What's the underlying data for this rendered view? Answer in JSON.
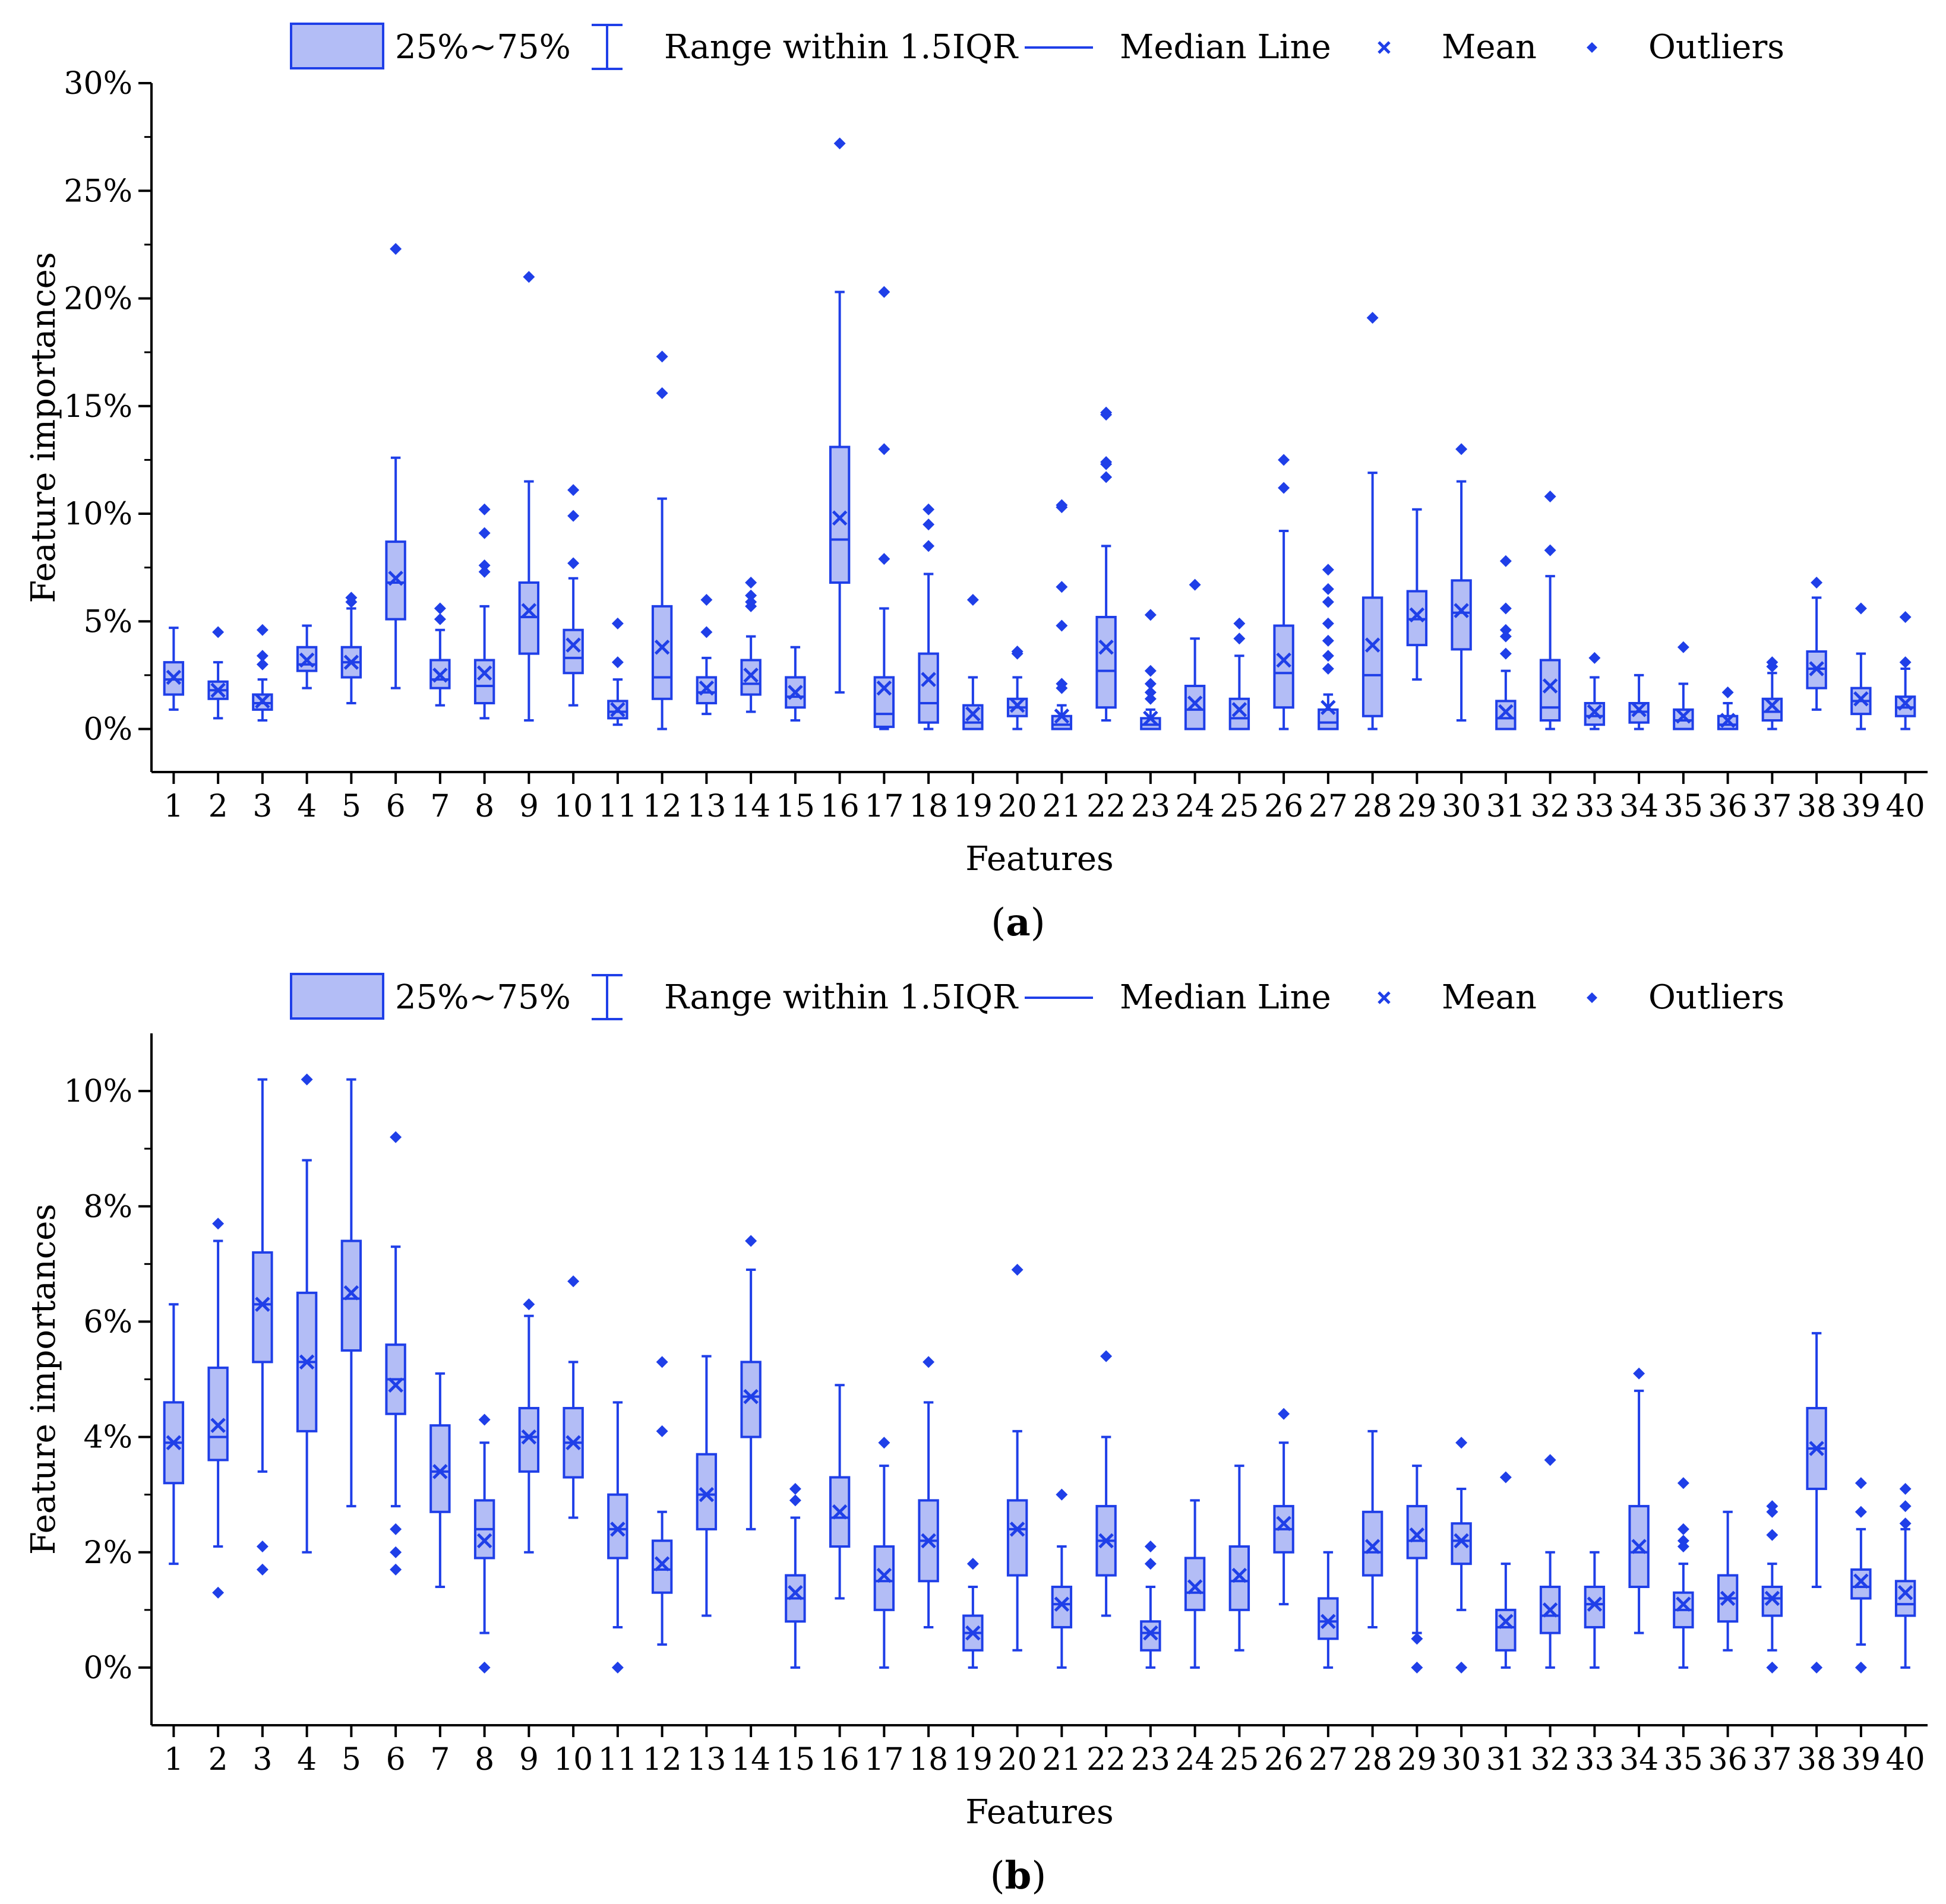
{
  "colors": {
    "accent": "#1f3fe8",
    "fill": "#b3bdf6",
    "axis": "#000000"
  },
  "legend": {
    "box": "25%~75%",
    "range": "Range within 1.5IQR",
    "median": "Median Line",
    "mean": "Mean",
    "outliers": "Outliers"
  },
  "chart_data": [
    {
      "type": "box",
      "caption_letter": "a",
      "xlabel": "Features",
      "ylabel": "Feature importances",
      "ylim": [
        -2,
        30
      ],
      "yticks": [
        0,
        5,
        10,
        15,
        20,
        25,
        30
      ],
      "ytick_labels": [
        "0%",
        "5%",
        "10%",
        "15%",
        "20%",
        "25%",
        "30%"
      ],
      "categories": [
        "1",
        "2",
        "3",
        "4",
        "5",
        "6",
        "7",
        "8",
        "9",
        "10",
        "11",
        "12",
        "13",
        "14",
        "15",
        "16",
        "17",
        "18",
        "19",
        "20",
        "21",
        "22",
        "23",
        "24",
        "25",
        "26",
        "27",
        "28",
        "29",
        "30",
        "31",
        "32",
        "33",
        "34",
        "35",
        "36",
        "37",
        "38",
        "39",
        "40"
      ],
      "boxes": [
        {
          "q1": 1.6,
          "median": 2.3,
          "q3": 3.1,
          "lo": 0.9,
          "hi": 4.7,
          "mean": 2.4,
          "outliers": []
        },
        {
          "q1": 1.4,
          "median": 1.8,
          "q3": 2.2,
          "lo": 0.5,
          "hi": 3.1,
          "mean": 1.8,
          "outliers": [
            4.5
          ]
        },
        {
          "q1": 0.9,
          "median": 1.2,
          "q3": 1.6,
          "lo": 0.4,
          "hi": 2.3,
          "mean": 1.3,
          "outliers": [
            3.0,
            3.4,
            4.6
          ]
        },
        {
          "q1": 2.7,
          "median": 3.0,
          "q3": 3.8,
          "lo": 1.9,
          "hi": 4.8,
          "mean": 3.2,
          "outliers": []
        },
        {
          "q1": 2.4,
          "median": 3.1,
          "q3": 3.8,
          "lo": 1.2,
          "hi": 5.6,
          "mean": 3.1,
          "outliers": [
            5.9,
            6.1
          ]
        },
        {
          "q1": 5.1,
          "median": 6.8,
          "q3": 8.7,
          "lo": 1.9,
          "hi": 12.6,
          "mean": 7.0,
          "outliers": [
            22.3
          ]
        },
        {
          "q1": 1.9,
          "median": 2.3,
          "q3": 3.2,
          "lo": 1.1,
          "hi": 4.6,
          "mean": 2.5,
          "outliers": [
            5.1,
            5.6
          ]
        },
        {
          "q1": 1.2,
          "median": 2.0,
          "q3": 3.2,
          "lo": 0.5,
          "hi": 5.7,
          "mean": 2.6,
          "outliers": [
            7.3,
            7.6,
            9.1,
            10.2
          ]
        },
        {
          "q1": 3.5,
          "median": 5.2,
          "q3": 6.8,
          "lo": 0.4,
          "hi": 11.5,
          "mean": 5.5,
          "outliers": [
            21.0
          ]
        },
        {
          "q1": 2.6,
          "median": 3.3,
          "q3": 4.6,
          "lo": 1.1,
          "hi": 7.0,
          "mean": 3.9,
          "outliers": [
            7.7,
            9.9,
            11.1
          ]
        },
        {
          "q1": 0.5,
          "median": 0.8,
          "q3": 1.3,
          "lo": 0.2,
          "hi": 2.3,
          "mean": 0.9,
          "outliers": [
            3.1,
            4.9
          ]
        },
        {
          "q1": 1.4,
          "median": 2.4,
          "q3": 5.7,
          "lo": 0.0,
          "hi": 10.7,
          "mean": 3.8,
          "outliers": [
            15.6,
            17.3
          ]
        },
        {
          "q1": 1.2,
          "median": 1.7,
          "q3": 2.4,
          "lo": 0.7,
          "hi": 3.3,
          "mean": 1.9,
          "outliers": [
            4.5,
            6.0
          ]
        },
        {
          "q1": 1.6,
          "median": 2.1,
          "q3": 3.2,
          "lo": 0.8,
          "hi": 4.3,
          "mean": 2.5,
          "outliers": [
            5.7,
            5.9,
            6.2,
            6.8
          ]
        },
        {
          "q1": 1.0,
          "median": 1.5,
          "q3": 2.4,
          "lo": 0.4,
          "hi": 3.8,
          "mean": 1.7,
          "outliers": []
        },
        {
          "q1": 6.8,
          "median": 8.8,
          "q3": 13.1,
          "lo": 1.7,
          "hi": 20.3,
          "mean": 9.8,
          "outliers": [
            27.2
          ]
        },
        {
          "q1": 0.1,
          "median": 0.7,
          "q3": 2.4,
          "lo": 0.0,
          "hi": 5.6,
          "mean": 1.9,
          "outliers": [
            7.9,
            13.0,
            20.3
          ]
        },
        {
          "q1": 0.3,
          "median": 1.2,
          "q3": 3.5,
          "lo": 0.0,
          "hi": 7.2,
          "mean": 2.3,
          "outliers": [
            8.5,
            9.5,
            10.2
          ]
        },
        {
          "q1": 0.0,
          "median": 0.3,
          "q3": 1.1,
          "lo": 0.0,
          "hi": 2.4,
          "mean": 0.7,
          "outliers": [
            6.0
          ]
        },
        {
          "q1": 0.6,
          "median": 1.0,
          "q3": 1.4,
          "lo": 0.0,
          "hi": 2.4,
          "mean": 1.1,
          "outliers": [
            3.5,
            3.6
          ]
        },
        {
          "q1": 0.0,
          "median": 0.2,
          "q3": 0.6,
          "lo": 0.0,
          "hi": 1.1,
          "mean": 0.6,
          "outliers": [
            1.9,
            2.1,
            4.8,
            6.6,
            10.3,
            10.4
          ]
        },
        {
          "q1": 1.0,
          "median": 2.7,
          "q3": 5.2,
          "lo": 0.4,
          "hi": 8.5,
          "mean": 3.8,
          "outliers": [
            11.7,
            12.3,
            12.4,
            14.6,
            14.7
          ]
        },
        {
          "q1": 0.0,
          "median": 0.2,
          "q3": 0.5,
          "lo": 0.0,
          "hi": 0.9,
          "mean": 0.5,
          "outliers": [
            1.4,
            1.7,
            2.1,
            2.7,
            5.3
          ]
        },
        {
          "q1": 0.0,
          "median": 0.9,
          "q3": 2.0,
          "lo": 0.0,
          "hi": 4.2,
          "mean": 1.2,
          "outliers": [
            6.7
          ]
        },
        {
          "q1": 0.0,
          "median": 0.5,
          "q3": 1.4,
          "lo": 0.0,
          "hi": 3.4,
          "mean": 0.9,
          "outliers": [
            4.2,
            4.9
          ]
        },
        {
          "q1": 1.0,
          "median": 2.6,
          "q3": 4.8,
          "lo": 0.0,
          "hi": 9.2,
          "mean": 3.2,
          "outliers": [
            11.2,
            12.5
          ]
        },
        {
          "q1": 0.0,
          "median": 0.3,
          "q3": 0.9,
          "lo": 0.0,
          "hi": 1.6,
          "mean": 1.0,
          "outliers": [
            2.8,
            3.4,
            4.1,
            4.9,
            5.9,
            6.5,
            7.4
          ]
        },
        {
          "q1": 0.6,
          "median": 2.5,
          "q3": 6.1,
          "lo": 0.0,
          "hi": 11.9,
          "mean": 3.9,
          "outliers": [
            19.1
          ]
        },
        {
          "q1": 3.9,
          "median": 5.1,
          "q3": 6.4,
          "lo": 2.3,
          "hi": 10.2,
          "mean": 5.3,
          "outliers": []
        },
        {
          "q1": 3.7,
          "median": 5.4,
          "q3": 6.9,
          "lo": 0.4,
          "hi": 11.5,
          "mean": 5.5,
          "outliers": [
            13.0
          ]
        },
        {
          "q1": 0.0,
          "median": 0.5,
          "q3": 1.3,
          "lo": 0.0,
          "hi": 2.7,
          "mean": 0.8,
          "outliers": [
            3.5,
            4.3,
            4.6,
            5.6,
            7.8
          ]
        },
        {
          "q1": 0.4,
          "median": 1.0,
          "q3": 3.2,
          "lo": 0.0,
          "hi": 7.1,
          "mean": 2.0,
          "outliers": [
            8.3,
            10.8
          ]
        },
        {
          "q1": 0.2,
          "median": 0.6,
          "q3": 1.2,
          "lo": 0.0,
          "hi": 2.4,
          "mean": 0.8,
          "outliers": [
            3.3
          ]
        },
        {
          "q1": 0.3,
          "median": 0.8,
          "q3": 1.2,
          "lo": 0.0,
          "hi": 2.5,
          "mean": 0.9,
          "outliers": []
        },
        {
          "q1": 0.0,
          "median": 0.4,
          "q3": 0.9,
          "lo": 0.0,
          "hi": 2.1,
          "mean": 0.6,
          "outliers": [
            3.8
          ]
        },
        {
          "q1": 0.0,
          "median": 0.2,
          "q3": 0.6,
          "lo": 0.0,
          "hi": 1.2,
          "mean": 0.4,
          "outliers": [
            1.7
          ]
        },
        {
          "q1": 0.4,
          "median": 0.8,
          "q3": 1.4,
          "lo": 0.0,
          "hi": 2.6,
          "mean": 1.1,
          "outliers": [
            2.9,
            3.1
          ]
        },
        {
          "q1": 1.9,
          "median": 2.8,
          "q3": 3.6,
          "lo": 0.9,
          "hi": 6.1,
          "mean": 2.8,
          "outliers": [
            6.8
          ]
        },
        {
          "q1": 0.7,
          "median": 1.3,
          "q3": 1.9,
          "lo": 0.0,
          "hi": 3.5,
          "mean": 1.4,
          "outliers": [
            5.6
          ]
        },
        {
          "q1": 0.6,
          "median": 1.0,
          "q3": 1.5,
          "lo": 0.0,
          "hi": 2.8,
          "mean": 1.2,
          "outliers": [
            3.1,
            5.2
          ]
        }
      ]
    },
    {
      "type": "box",
      "caption_letter": "b",
      "xlabel": "Features",
      "ylabel": "Feature importances",
      "ylim": [
        -1,
        11
      ],
      "yticks": [
        0,
        2,
        4,
        6,
        8,
        10
      ],
      "ytick_labels": [
        "0%",
        "2%",
        "4%",
        "6%",
        "8%",
        "10%"
      ],
      "categories": [
        "1",
        "2",
        "3",
        "4",
        "5",
        "6",
        "7",
        "8",
        "9",
        "10",
        "11",
        "12",
        "13",
        "14",
        "15",
        "16",
        "17",
        "18",
        "19",
        "20",
        "21",
        "22",
        "23",
        "24",
        "25",
        "26",
        "27",
        "28",
        "29",
        "30",
        "31",
        "32",
        "33",
        "34",
        "35",
        "36",
        "37",
        "38",
        "39",
        "40"
      ],
      "boxes": [
        {
          "q1": 3.2,
          "median": 3.9,
          "q3": 4.6,
          "lo": 1.8,
          "hi": 6.3,
          "mean": 3.9,
          "outliers": []
        },
        {
          "q1": 3.6,
          "median": 4.0,
          "q3": 5.2,
          "lo": 2.1,
          "hi": 7.4,
          "mean": 4.2,
          "outliers": [
            1.3,
            7.7
          ]
        },
        {
          "q1": 5.3,
          "median": 6.3,
          "q3": 7.2,
          "lo": 3.4,
          "hi": 10.2,
          "mean": 6.3,
          "outliers": [
            1.7,
            2.1
          ]
        },
        {
          "q1": 4.1,
          "median": 5.3,
          "q3": 6.5,
          "lo": 2.0,
          "hi": 8.8,
          "mean": 5.3,
          "outliers": [
            10.2
          ]
        },
        {
          "q1": 5.5,
          "median": 6.4,
          "q3": 7.4,
          "lo": 2.8,
          "hi": 10.2,
          "mean": 6.5,
          "outliers": []
        },
        {
          "q1": 4.4,
          "median": 5.0,
          "q3": 5.6,
          "lo": 2.8,
          "hi": 7.3,
          "mean": 4.9,
          "outliers": [
            1.7,
            2.0,
            2.4,
            9.2
          ]
        },
        {
          "q1": 2.7,
          "median": 3.4,
          "q3": 4.2,
          "lo": 1.4,
          "hi": 5.1,
          "mean": 3.4,
          "outliers": []
        },
        {
          "q1": 1.9,
          "median": 2.4,
          "q3": 2.9,
          "lo": 0.6,
          "hi": 3.9,
          "mean": 2.2,
          "outliers": [
            0.0,
            4.3
          ]
        },
        {
          "q1": 3.4,
          "median": 4.0,
          "q3": 4.5,
          "lo": 2.0,
          "hi": 6.1,
          "mean": 4.0,
          "outliers": [
            6.3
          ]
        },
        {
          "q1": 3.3,
          "median": 3.9,
          "q3": 4.5,
          "lo": 2.6,
          "hi": 5.3,
          "mean": 3.9,
          "outliers": [
            6.7
          ]
        },
        {
          "q1": 1.9,
          "median": 2.4,
          "q3": 3.0,
          "lo": 0.7,
          "hi": 4.6,
          "mean": 2.4,
          "outliers": [
            0.0
          ]
        },
        {
          "q1": 1.3,
          "median": 1.7,
          "q3": 2.2,
          "lo": 0.4,
          "hi": 2.7,
          "mean": 1.8,
          "outliers": [
            4.1,
            5.3
          ]
        },
        {
          "q1": 2.4,
          "median": 3.0,
          "q3": 3.7,
          "lo": 0.9,
          "hi": 5.4,
          "mean": 3.0,
          "outliers": []
        },
        {
          "q1": 4.0,
          "median": 4.7,
          "q3": 5.3,
          "lo": 2.4,
          "hi": 6.9,
          "mean": 4.7,
          "outliers": [
            7.4
          ]
        },
        {
          "q1": 0.8,
          "median": 1.2,
          "q3": 1.6,
          "lo": 0.0,
          "hi": 2.6,
          "mean": 1.3,
          "outliers": [
            2.9,
            3.1
          ]
        },
        {
          "q1": 2.1,
          "median": 2.6,
          "q3": 3.3,
          "lo": 1.2,
          "hi": 4.9,
          "mean": 2.7,
          "outliers": []
        },
        {
          "q1": 1.0,
          "median": 1.5,
          "q3": 2.1,
          "lo": 0.0,
          "hi": 3.5,
          "mean": 1.6,
          "outliers": [
            3.9
          ]
        },
        {
          "q1": 1.5,
          "median": 2.2,
          "q3": 2.9,
          "lo": 0.7,
          "hi": 4.6,
          "mean": 2.2,
          "outliers": [
            5.3
          ]
        },
        {
          "q1": 0.3,
          "median": 0.6,
          "q3": 0.9,
          "lo": 0.0,
          "hi": 1.4,
          "mean": 0.6,
          "outliers": [
            1.8
          ]
        },
        {
          "q1": 1.6,
          "median": 2.4,
          "q3": 2.9,
          "lo": 0.3,
          "hi": 4.1,
          "mean": 2.4,
          "outliers": [
            6.9
          ]
        },
        {
          "q1": 0.7,
          "median": 1.1,
          "q3": 1.4,
          "lo": 0.0,
          "hi": 2.1,
          "mean": 1.1,
          "outliers": [
            3.0
          ]
        },
        {
          "q1": 1.6,
          "median": 2.2,
          "q3": 2.8,
          "lo": 0.9,
          "hi": 4.0,
          "mean": 2.2,
          "outliers": [
            5.4
          ]
        },
        {
          "q1": 0.3,
          "median": 0.6,
          "q3": 0.8,
          "lo": 0.0,
          "hi": 1.4,
          "mean": 0.6,
          "outliers": [
            1.8,
            2.1
          ]
        },
        {
          "q1": 1.0,
          "median": 1.3,
          "q3": 1.9,
          "lo": 0.0,
          "hi": 2.9,
          "mean": 1.4,
          "outliers": []
        },
        {
          "q1": 1.0,
          "median": 1.5,
          "q3": 2.1,
          "lo": 0.3,
          "hi": 3.5,
          "mean": 1.6,
          "outliers": []
        },
        {
          "q1": 2.0,
          "median": 2.4,
          "q3": 2.8,
          "lo": 1.1,
          "hi": 3.9,
          "mean": 2.5,
          "outliers": [
            4.4
          ]
        },
        {
          "q1": 0.5,
          "median": 0.8,
          "q3": 1.2,
          "lo": 0.0,
          "hi": 2.0,
          "mean": 0.8,
          "outliers": []
        },
        {
          "q1": 1.6,
          "median": 2.0,
          "q3": 2.7,
          "lo": 0.7,
          "hi": 4.1,
          "mean": 2.1,
          "outliers": []
        },
        {
          "q1": 1.9,
          "median": 2.2,
          "q3": 2.8,
          "lo": 0.6,
          "hi": 3.5,
          "mean": 2.3,
          "outliers": [
            0.0,
            0.5
          ]
        },
        {
          "q1": 1.8,
          "median": 2.2,
          "q3": 2.5,
          "lo": 1.0,
          "hi": 3.1,
          "mean": 2.2,
          "outliers": [
            0.0,
            3.9
          ]
        },
        {
          "q1": 0.3,
          "median": 0.7,
          "q3": 1.0,
          "lo": 0.0,
          "hi": 1.8,
          "mean": 0.8,
          "outliers": [
            3.3
          ]
        },
        {
          "q1": 0.6,
          "median": 0.9,
          "q3": 1.4,
          "lo": 0.0,
          "hi": 2.0,
          "mean": 1.0,
          "outliers": [
            3.6
          ]
        },
        {
          "q1": 0.7,
          "median": 1.1,
          "q3": 1.4,
          "lo": 0.0,
          "hi": 2.0,
          "mean": 1.1,
          "outliers": []
        },
        {
          "q1": 1.4,
          "median": 2.0,
          "q3": 2.8,
          "lo": 0.6,
          "hi": 4.8,
          "mean": 2.1,
          "outliers": [
            5.1
          ]
        },
        {
          "q1": 0.7,
          "median": 1.0,
          "q3": 1.3,
          "lo": 0.0,
          "hi": 1.8,
          "mean": 1.1,
          "outliers": [
            2.1,
            2.2,
            2.4,
            3.2
          ]
        },
        {
          "q1": 0.8,
          "median": 1.2,
          "q3": 1.6,
          "lo": 0.3,
          "hi": 2.7,
          "mean": 1.2,
          "outliers": []
        },
        {
          "q1": 0.9,
          "median": 1.2,
          "q3": 1.4,
          "lo": 0.3,
          "hi": 1.8,
          "mean": 1.2,
          "outliers": [
            0.0,
            2.3,
            2.7,
            2.8
          ]
        },
        {
          "q1": 3.1,
          "median": 3.8,
          "q3": 4.5,
          "lo": 1.4,
          "hi": 5.8,
          "mean": 3.8,
          "outliers": [
            0.0
          ]
        },
        {
          "q1": 1.2,
          "median": 1.4,
          "q3": 1.7,
          "lo": 0.4,
          "hi": 2.4,
          "mean": 1.5,
          "outliers": [
            0.0,
            2.7,
            3.2
          ]
        },
        {
          "q1": 0.9,
          "median": 1.1,
          "q3": 1.5,
          "lo": 0.0,
          "hi": 2.4,
          "mean": 1.3,
          "outliers": [
            2.5,
            2.8,
            3.1
          ]
        }
      ]
    }
  ]
}
